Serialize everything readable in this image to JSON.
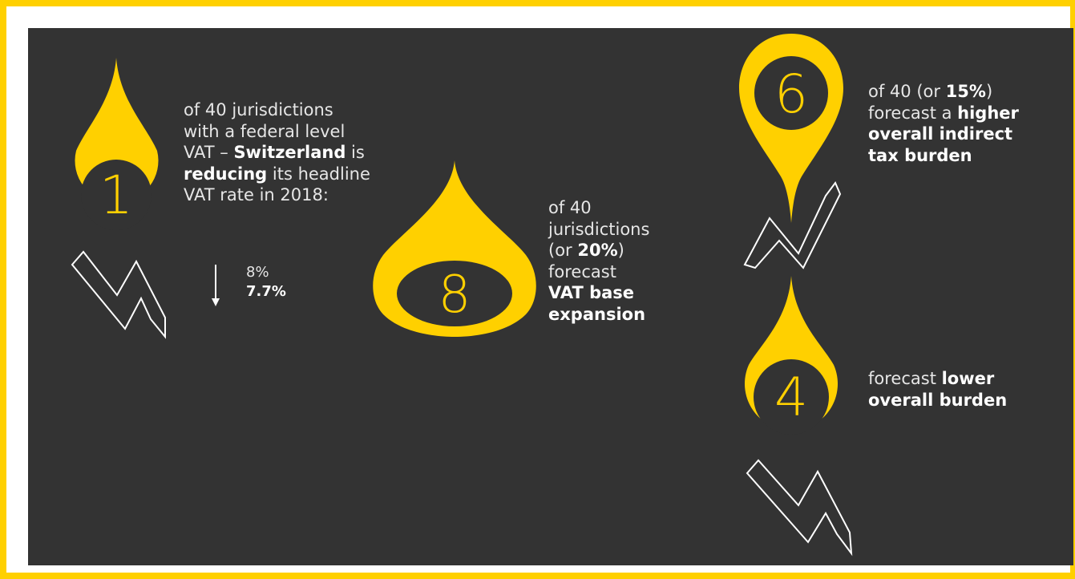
{
  "colors": {
    "accent": "#ffd000",
    "background": "#333333",
    "text": "#e6e6e6"
  },
  "stats": [
    {
      "number": "1",
      "lines": [
        [
          "of 40 jurisdictions"
        ],
        [
          "with a federal level"
        ],
        [
          "VAT – ",
          "Switzerland",
          " is"
        ],
        [
          "reducing",
          " its headline"
        ],
        [
          "VAT rate in 2018:"
        ]
      ],
      "rate_change": {
        "from": "8%",
        "to": "7.7%",
        "arrow_icon": "down-arrow-icon"
      },
      "trend_icon": "zigzag-down-arrow-icon"
    },
    {
      "number": "8",
      "lines": [
        [
          "of 40"
        ],
        [
          "jurisdictions"
        ],
        [
          "(or ",
          "20%",
          ")"
        ],
        [
          "forecast"
        ],
        [
          "VAT base"
        ],
        [
          "expansion"
        ]
      ]
    },
    {
      "number": "6",
      "lines": [
        [
          "of 40 (or ",
          "15%",
          ")"
        ],
        [
          "forecast a ",
          "higher"
        ],
        [
          "overall indirect"
        ],
        [
          "tax burden"
        ]
      ],
      "trend_icon": "zigzag-up-arrow-icon"
    },
    {
      "number": "4",
      "lines": [
        [
          "forecast ",
          "lower"
        ],
        [
          "overall burden"
        ]
      ],
      "trend_icon": "zigzag-down-arrow-icon"
    }
  ]
}
